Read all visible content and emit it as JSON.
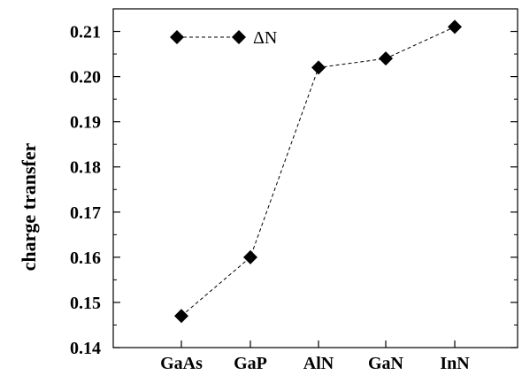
{
  "chart_data": {
    "type": "line",
    "categories": [
      "GaAs",
      "GaP",
      "AlN",
      "GaN",
      "InN"
    ],
    "series": [
      {
        "name": "ΔN",
        "values": [
          0.147,
          0.16,
          0.202,
          0.204,
          0.211
        ]
      }
    ],
    "ylabel": "charge transfer",
    "xlabel": "",
    "ylim": [
      0.14,
      0.215
    ],
    "yticks": [
      0.14,
      0.15,
      0.16,
      0.17,
      0.18,
      0.19,
      0.2,
      0.21
    ],
    "ytick_labels": [
      "0.14",
      "0.15",
      "0.16",
      "0.17",
      "0.18",
      "0.19",
      "0.20",
      "0.21"
    ],
    "grid": false,
    "legend": "top-left",
    "marker": "diamond",
    "line_style": "dashed",
    "color": "#000000"
  }
}
